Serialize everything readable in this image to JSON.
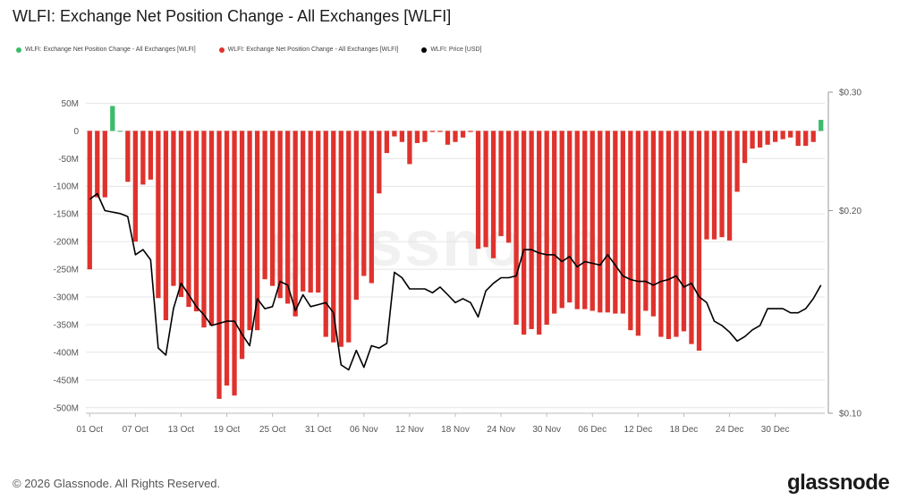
{
  "title": "WLFI: Exchange Net Position Change - All Exchanges [WLFI]",
  "legend": [
    {
      "label": "WLFI: Exchange Net Position Change - All Exchanges [WLFI]",
      "color": "#3dbb6b"
    },
    {
      "label": "WLFI: Exchange Net Position Change - All Exchanges [WLFI]",
      "color": "#e0322d"
    },
    {
      "label": "WLFI: Price [USD]",
      "color": "#000000"
    }
  ],
  "footer": "© 2026 Glassnode. All Rights Reserved.",
  "logo": "glassnode",
  "watermark": "glassnode",
  "colors": {
    "positive": "#3dbb6b",
    "negative": "#e0322d",
    "price": "#000000",
    "grid": "#e4e4e4"
  },
  "chart_data": {
    "type": "bar",
    "title": "WLFI: Exchange Net Position Change - All Exchanges [WLFI]",
    "x_ticks": [
      "01 Oct",
      "07 Oct",
      "13 Oct",
      "19 Oct",
      "25 Oct",
      "31 Oct",
      "06 Nov",
      "12 Nov",
      "18 Nov",
      "24 Nov",
      "30 Nov",
      "06 Dec",
      "12 Dec",
      "18 Dec",
      "24 Dec",
      "30 Dec"
    ],
    "y_ticks": [
      "50M",
      "0",
      "-50M",
      "-100M",
      "-150M",
      "-200M",
      "-250M",
      "-300M",
      "-350M",
      "-400M",
      "-450M",
      "-500M"
    ],
    "y_tick_values": [
      50,
      0,
      -50,
      -100,
      -150,
      -200,
      -250,
      -300,
      -350,
      -400,
      -450,
      -500
    ],
    "ylim": [
      -510,
      70
    ],
    "y2_ticks": [
      "$0.30",
      "$0.20",
      "$0.10"
    ],
    "y2_tick_values": [
      0.3,
      0.2,
      0.1
    ],
    "y2lim": [
      0.1,
      0.3
    ],
    "y2_scale": "log",
    "legend_position": "top-left",
    "series": [
      {
        "name": "WLFI: Exchange Net Position Change - All Exchanges [WLFI]",
        "unit": "M WLFI",
        "values": [
          -250,
          -120,
          -120,
          45,
          0,
          -92,
          -200,
          -97,
          -88,
          -302,
          -342,
          -280,
          -300,
          -318,
          -326,
          -355,
          -352,
          -484,
          -460,
          -478,
          -412,
          -360,
          -360,
          -268,
          -280,
          -302,
          -312,
          -335,
          -290,
          -292,
          -292,
          -372,
          -382,
          -390,
          -382,
          -305,
          -262,
          -275,
          -113,
          -40,
          -10,
          -20,
          -60,
          -22,
          -20,
          -2,
          -2,
          -25,
          -20,
          -12,
          -2,
          -213,
          -210,
          -230,
          -190,
          -202,
          -350,
          -368,
          -358,
          -368,
          -350,
          -330,
          -320,
          -310,
          -322,
          -322,
          -325,
          -328,
          -328,
          -330,
          -330,
          -360,
          -370,
          -325,
          -335,
          -372,
          -376,
          -372,
          -362,
          -385,
          -397,
          -196,
          -196,
          -192,
          -198,
          -110,
          -58,
          -32,
          -30,
          -25,
          -20,
          -15,
          -12,
          -27,
          -27,
          -20,
          20
        ]
      },
      {
        "name": "WLFI: Price [USD]",
        "unit": "USD",
        "values": [
          0.208,
          0.212,
          0.2,
          0.199,
          0.198,
          0.196,
          0.172,
          0.175,
          0.169,
          0.125,
          0.122,
          0.143,
          0.156,
          0.15,
          0.144,
          0.14,
          0.135,
          0.136,
          0.137,
          0.137,
          0.131,
          0.126,
          0.148,
          0.143,
          0.144,
          0.157,
          0.155,
          0.142,
          0.15,
          0.144,
          0.145,
          0.146,
          0.141,
          0.118,
          0.116,
          0.124,
          0.117,
          0.126,
          0.125,
          0.127,
          0.162,
          0.159,
          0.153,
          0.153,
          0.153,
          0.151,
          0.154,
          0.15,
          0.146,
          0.148,
          0.146,
          0.139,
          0.152,
          0.156,
          0.159,
          0.159,
          0.16,
          0.175,
          0.175,
          0.173,
          0.172,
          0.172,
          0.168,
          0.171,
          0.165,
          0.168,
          0.167,
          0.166,
          0.172,
          0.166,
          0.16,
          0.158,
          0.157,
          0.157,
          0.155,
          0.157,
          0.158,
          0.16,
          0.154,
          0.156,
          0.149,
          0.146,
          0.137,
          0.135,
          0.132,
          0.128,
          0.13,
          0.133,
          0.135,
          0.143,
          0.143,
          0.143,
          0.141,
          0.141,
          0.143,
          0.148,
          0.155
        ]
      }
    ]
  }
}
